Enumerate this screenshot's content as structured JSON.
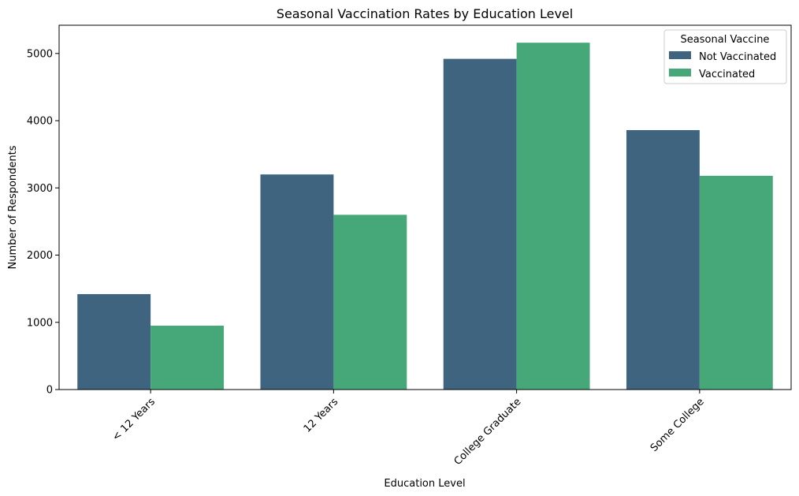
{
  "chart_data": {
    "type": "bar",
    "title": "Seasonal Vaccination Rates by Education Level",
    "xlabel": "Education Level",
    "ylabel": "Number of Respondents",
    "categories": [
      "< 12 Years",
      "12 Years",
      "College Graduate",
      "Some College"
    ],
    "series": [
      {
        "name": "Not Vaccinated",
        "color": "#3e6480",
        "values": [
          1420,
          3200,
          4920,
          3860
        ]
      },
      {
        "name": "Vaccinated",
        "color": "#46a878",
        "values": [
          950,
          2600,
          5160,
          3180
        ]
      }
    ],
    "ylim": [
      0,
      5420
    ],
    "yticks": [
      0,
      1000,
      2000,
      3000,
      4000,
      5000
    ],
    "ytick_labels": [
      "0",
      "1000",
      "2000",
      "3000",
      "4000",
      "5000"
    ],
    "legend": {
      "title": "Seasonal Vaccine",
      "placement": "top-right"
    },
    "grid": false
  }
}
